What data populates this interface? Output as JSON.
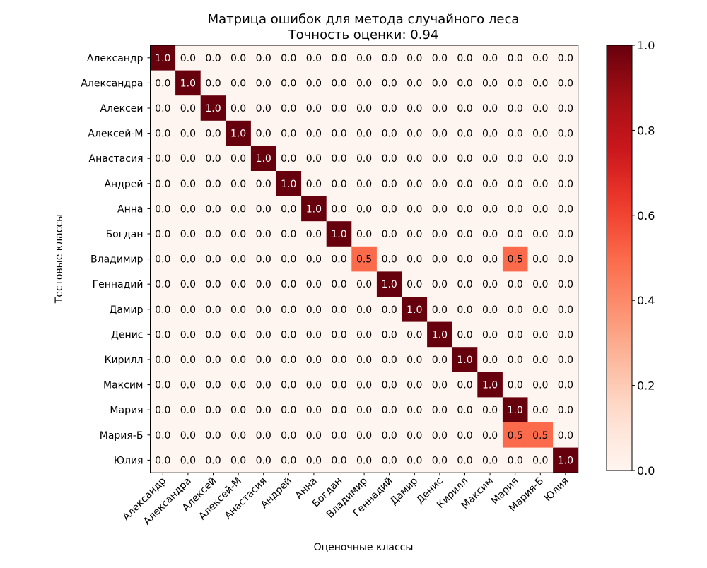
{
  "chart_data": {
    "type": "heatmap",
    "title": "Матрица ошибок для метода случайного леса",
    "subtitle": "Точность оценки: 0.94",
    "xlabel": "Оценочные классы",
    "ylabel": "Тестовые классы",
    "row_labels": [
      "Александр",
      "Александра",
      "Алексей",
      "Алексей-М",
      "Анастасия ",
      "Андрей",
      "Анна",
      "Богдан",
      "Владимир",
      "Геннадий",
      "Дамир",
      "Денис",
      "Кирилл",
      "Максим",
      "Мария",
      "Мария-Б",
      "Юлия"
    ],
    "col_labels": [
      "Александр",
      "Александра",
      "Алексей",
      "Алексей-М",
      "Анастасия ",
      "Андрей",
      "Анна",
      "Богдан",
      "Владимир",
      "Геннадий",
      "Дамир",
      "Денис",
      "Кирилл",
      "Максим",
      "Мария",
      "Мария-Б",
      "Юлия"
    ],
    "values": [
      [
        1.0,
        0.0,
        0.0,
        0.0,
        0.0,
        0.0,
        0.0,
        0.0,
        0.0,
        0.0,
        0.0,
        0.0,
        0.0,
        0.0,
        0.0,
        0.0,
        0.0
      ],
      [
        0.0,
        1.0,
        0.0,
        0.0,
        0.0,
        0.0,
        0.0,
        0.0,
        0.0,
        0.0,
        0.0,
        0.0,
        0.0,
        0.0,
        0.0,
        0.0,
        0.0
      ],
      [
        0.0,
        0.0,
        1.0,
        0.0,
        0.0,
        0.0,
        0.0,
        0.0,
        0.0,
        0.0,
        0.0,
        0.0,
        0.0,
        0.0,
        0.0,
        0.0,
        0.0
      ],
      [
        0.0,
        0.0,
        0.0,
        1.0,
        0.0,
        0.0,
        0.0,
        0.0,
        0.0,
        0.0,
        0.0,
        0.0,
        0.0,
        0.0,
        0.0,
        0.0,
        0.0
      ],
      [
        0.0,
        0.0,
        0.0,
        0.0,
        1.0,
        0.0,
        0.0,
        0.0,
        0.0,
        0.0,
        0.0,
        0.0,
        0.0,
        0.0,
        0.0,
        0.0,
        0.0
      ],
      [
        0.0,
        0.0,
        0.0,
        0.0,
        0.0,
        1.0,
        0.0,
        0.0,
        0.0,
        0.0,
        0.0,
        0.0,
        0.0,
        0.0,
        0.0,
        0.0,
        0.0
      ],
      [
        0.0,
        0.0,
        0.0,
        0.0,
        0.0,
        0.0,
        1.0,
        0.0,
        0.0,
        0.0,
        0.0,
        0.0,
        0.0,
        0.0,
        0.0,
        0.0,
        0.0
      ],
      [
        0.0,
        0.0,
        0.0,
        0.0,
        0.0,
        0.0,
        0.0,
        1.0,
        0.0,
        0.0,
        0.0,
        0.0,
        0.0,
        0.0,
        0.0,
        0.0,
        0.0
      ],
      [
        0.0,
        0.0,
        0.0,
        0.0,
        0.0,
        0.0,
        0.0,
        0.0,
        0.5,
        0.0,
        0.0,
        0.0,
        0.0,
        0.0,
        0.5,
        0.0,
        0.0
      ],
      [
        0.0,
        0.0,
        0.0,
        0.0,
        0.0,
        0.0,
        0.0,
        0.0,
        0.0,
        1.0,
        0.0,
        0.0,
        0.0,
        0.0,
        0.0,
        0.0,
        0.0
      ],
      [
        0.0,
        0.0,
        0.0,
        0.0,
        0.0,
        0.0,
        0.0,
        0.0,
        0.0,
        0.0,
        1.0,
        0.0,
        0.0,
        0.0,
        0.0,
        0.0,
        0.0
      ],
      [
        0.0,
        0.0,
        0.0,
        0.0,
        0.0,
        0.0,
        0.0,
        0.0,
        0.0,
        0.0,
        0.0,
        1.0,
        0.0,
        0.0,
        0.0,
        0.0,
        0.0
      ],
      [
        0.0,
        0.0,
        0.0,
        0.0,
        0.0,
        0.0,
        0.0,
        0.0,
        0.0,
        0.0,
        0.0,
        0.0,
        1.0,
        0.0,
        0.0,
        0.0,
        0.0
      ],
      [
        0.0,
        0.0,
        0.0,
        0.0,
        0.0,
        0.0,
        0.0,
        0.0,
        0.0,
        0.0,
        0.0,
        0.0,
        0.0,
        1.0,
        0.0,
        0.0,
        0.0
      ],
      [
        0.0,
        0.0,
        0.0,
        0.0,
        0.0,
        0.0,
        0.0,
        0.0,
        0.0,
        0.0,
        0.0,
        0.0,
        0.0,
        0.0,
        1.0,
        0.0,
        0.0
      ],
      [
        0.0,
        0.0,
        0.0,
        0.0,
        0.0,
        0.0,
        0.0,
        0.0,
        0.0,
        0.0,
        0.0,
        0.0,
        0.0,
        0.0,
        0.5,
        0.5,
        0.0
      ],
      [
        0.0,
        0.0,
        0.0,
        0.0,
        0.0,
        0.0,
        0.0,
        0.0,
        0.0,
        0.0,
        0.0,
        0.0,
        0.0,
        0.0,
        0.0,
        0.0,
        1.0
      ]
    ],
    "value_range": [
      0.0,
      1.0
    ],
    "colormap": "Reds",
    "colorbar_ticks": [
      "0.0",
      "0.2",
      "0.4",
      "0.6",
      "0.8",
      "1.0"
    ],
    "colorbar_tick_values": [
      0.0,
      0.2,
      0.4,
      0.6,
      0.8,
      1.0
    ],
    "colors": {
      "scale": [
        "#fff5f0",
        "#fee0d2",
        "#fcbba1",
        "#fc9272",
        "#fb6a4a",
        "#ef3b2c",
        "#cb181d",
        "#a50f15",
        "#67000d"
      ],
      "text_dark": "#000000",
      "text_light": "#ffffff"
    }
  }
}
